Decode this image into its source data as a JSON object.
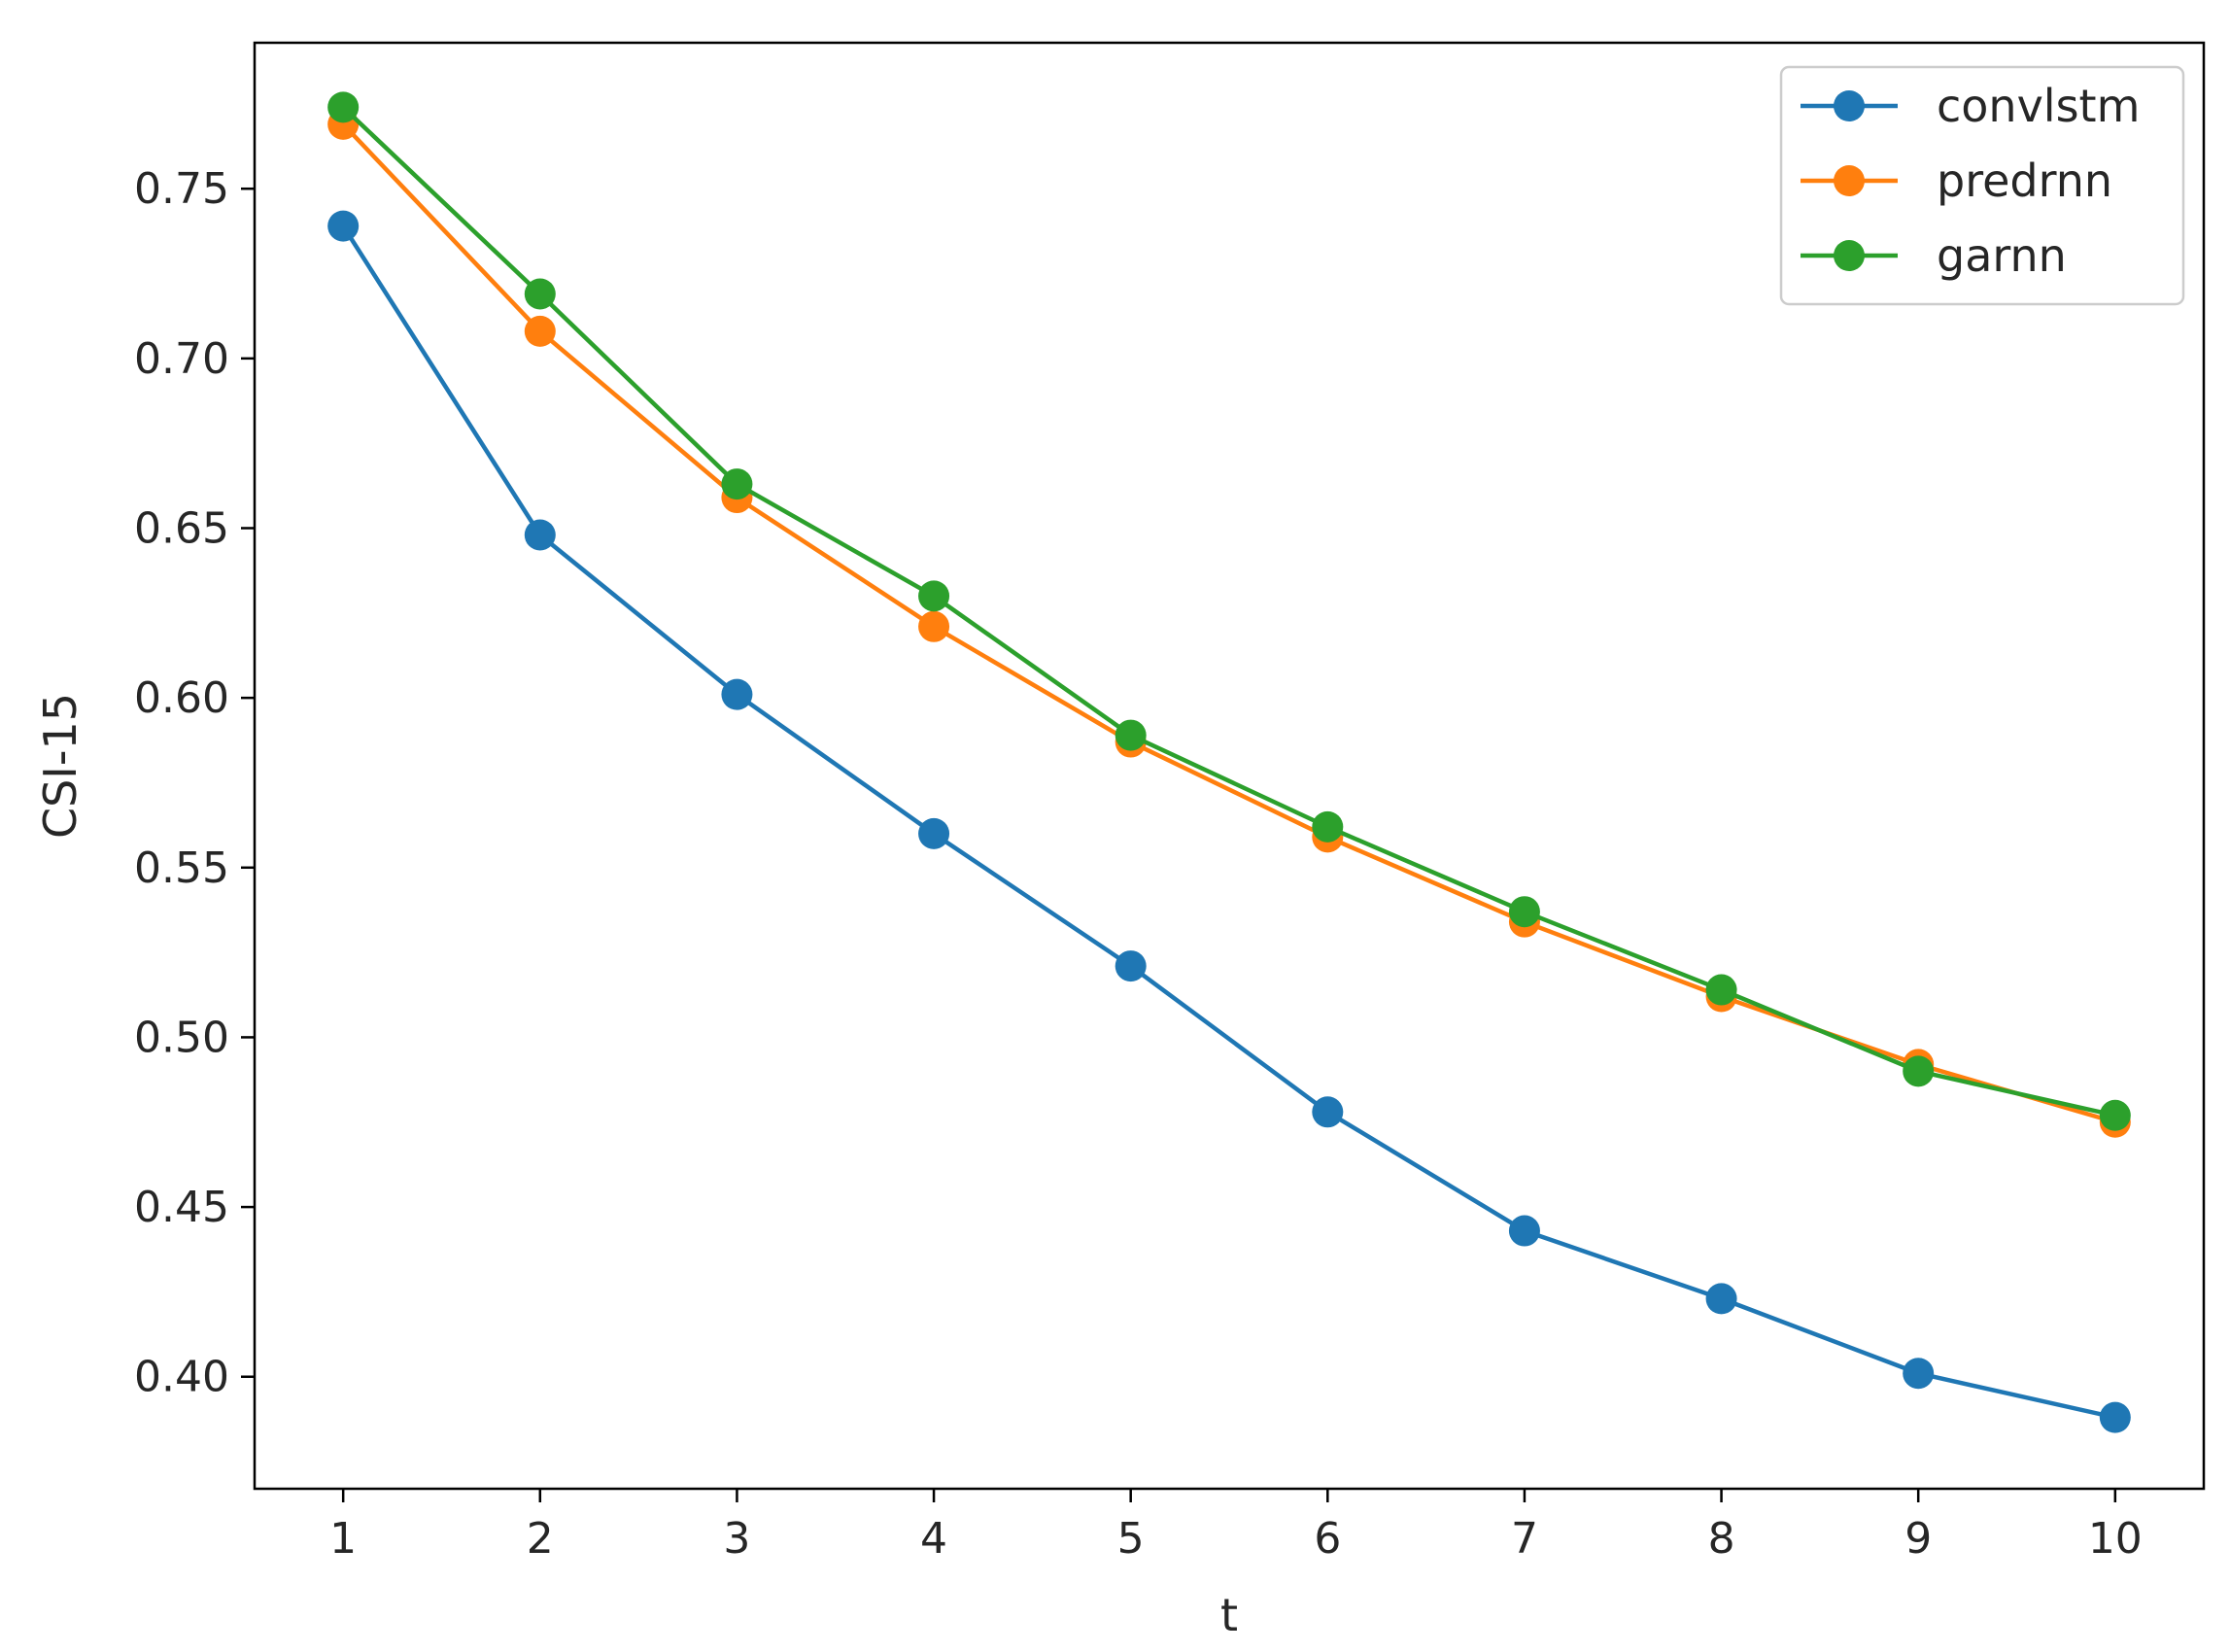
{
  "chart_data": {
    "type": "line",
    "title": "",
    "xlabel": "t",
    "ylabel": "CSI-15",
    "x": [
      1,
      2,
      3,
      4,
      5,
      6,
      7,
      8,
      9,
      10
    ],
    "xticks": [
      "1",
      "2",
      "3",
      "4",
      "5",
      "6",
      "7",
      "8",
      "9",
      "10"
    ],
    "yticks": [
      0.4,
      0.45,
      0.5,
      0.55,
      0.6,
      0.65,
      0.7,
      0.75
    ],
    "ytick_labels": [
      "0.40",
      "0.45",
      "0.50",
      "0.55",
      "0.60",
      "0.65",
      "0.70",
      "0.75"
    ],
    "xlim": [
      0.55,
      10.45
    ],
    "ylim": [
      0.367,
      0.793
    ],
    "grid": false,
    "legend_position": "top-right",
    "series": [
      {
        "name": "convlstm",
        "color": "#1f77b4",
        "values": [
          0.739,
          0.648,
          0.601,
          0.56,
          0.521,
          0.478,
          0.443,
          0.423,
          0.401,
          0.388
        ]
      },
      {
        "name": "predrnn",
        "color": "#ff7f0e",
        "values": [
          0.769,
          0.708,
          0.659,
          0.621,
          0.587,
          0.559,
          0.534,
          0.512,
          0.492,
          0.475
        ]
      },
      {
        "name": "garnn",
        "color": "#2ca02c",
        "values": [
          0.774,
          0.719,
          0.663,
          0.63,
          0.589,
          0.562,
          0.537,
          0.514,
          0.49,
          0.477
        ]
      }
    ]
  }
}
